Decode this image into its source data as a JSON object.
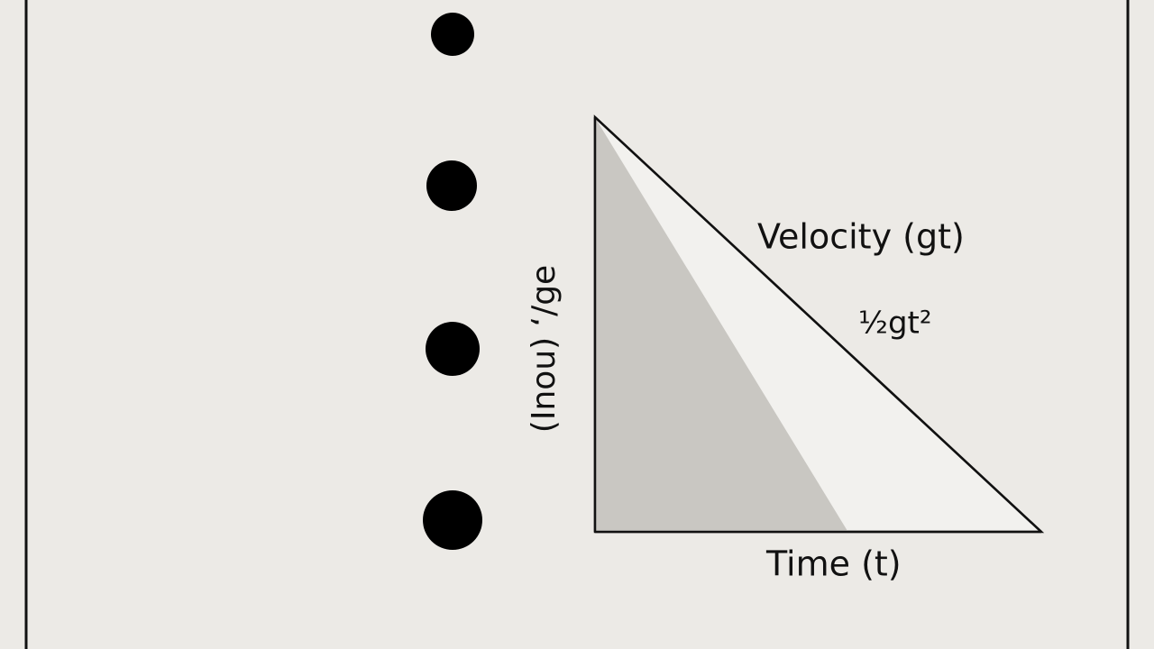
{
  "diagram": {
    "labels": {
      "velocity": "Velocity (gt)",
      "distance": "½gt²",
      "time": "Time (t)",
      "vertical": "(Inou) ʻ/ge"
    }
  }
}
